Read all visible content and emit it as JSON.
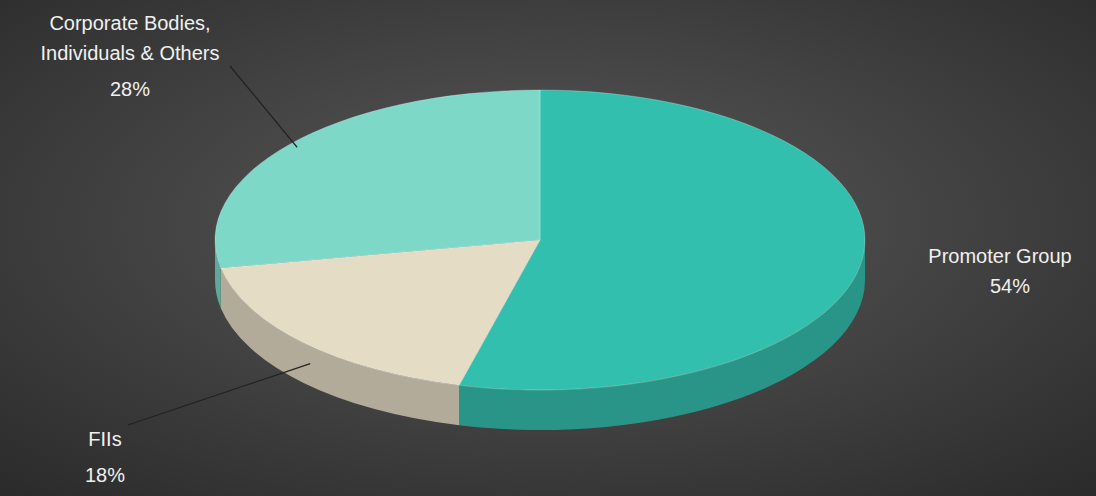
{
  "chart_data": {
    "type": "pie",
    "categories": [
      "Promoter Group",
      "FIIs",
      "Corporate Bodies, Individuals & Others"
    ],
    "values": [
      54,
      18,
      28
    ],
    "value_labels": [
      "54%",
      "18%",
      "28%"
    ],
    "colors": [
      "#33bfae",
      "#e5dcc5",
      "#7dd8c8"
    ],
    "data_labels": true
  }
}
